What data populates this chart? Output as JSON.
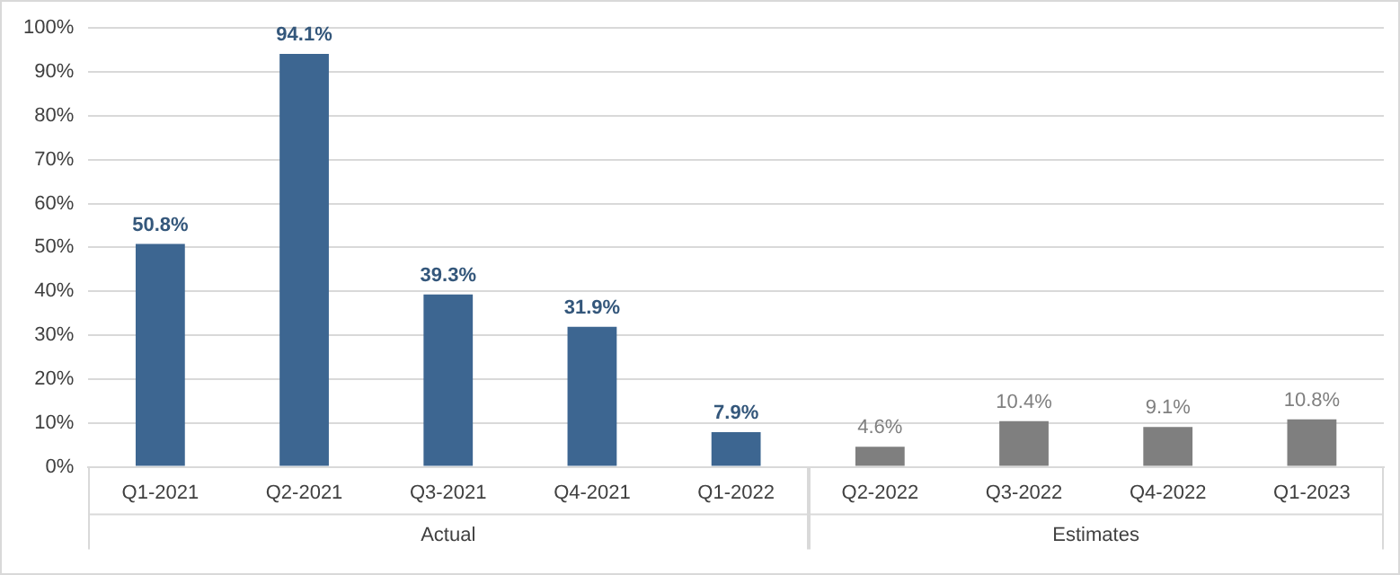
{
  "chart_data": {
    "type": "bar",
    "categories": [
      "Q1-2021",
      "Q2-2021",
      "Q3-2021",
      "Q4-2021",
      "Q1-2022",
      "Q2-2022",
      "Q3-2022",
      "Q4-2022",
      "Q1-2023"
    ],
    "series": [
      {
        "name": "Actual",
        "color": "#3d6691",
        "values": [
          50.8,
          94.1,
          39.3,
          31.9,
          7.9,
          null,
          null,
          null,
          null
        ],
        "value_labels": [
          "50.8%",
          "94.1%",
          "39.3%",
          "31.9%",
          "7.9%",
          null,
          null,
          null,
          null
        ]
      },
      {
        "name": "Estimates",
        "color": "#7f7f7f",
        "values": [
          null,
          null,
          null,
          null,
          null,
          4.6,
          10.4,
          9.1,
          10.8
        ],
        "value_labels": [
          null,
          null,
          null,
          null,
          null,
          "4.6%",
          "10.4%",
          "9.1%",
          "10.8%"
        ]
      }
    ],
    "ylim": [
      0,
      100
    ],
    "yticks": [
      {
        "value": 0,
        "label": "0%"
      },
      {
        "value": 10,
        "label": "10%"
      },
      {
        "value": 20,
        "label": "20%"
      },
      {
        "value": 30,
        "label": "30%"
      },
      {
        "value": 40,
        "label": "40%"
      },
      {
        "value": 50,
        "label": "50%"
      },
      {
        "value": 60,
        "label": "60%"
      },
      {
        "value": 70,
        "label": "70%"
      },
      {
        "value": 80,
        "label": "80%"
      },
      {
        "value": 90,
        "label": "90%"
      },
      {
        "value": 100,
        "label": "100%"
      }
    ],
    "grid": "y",
    "legend": false
  }
}
